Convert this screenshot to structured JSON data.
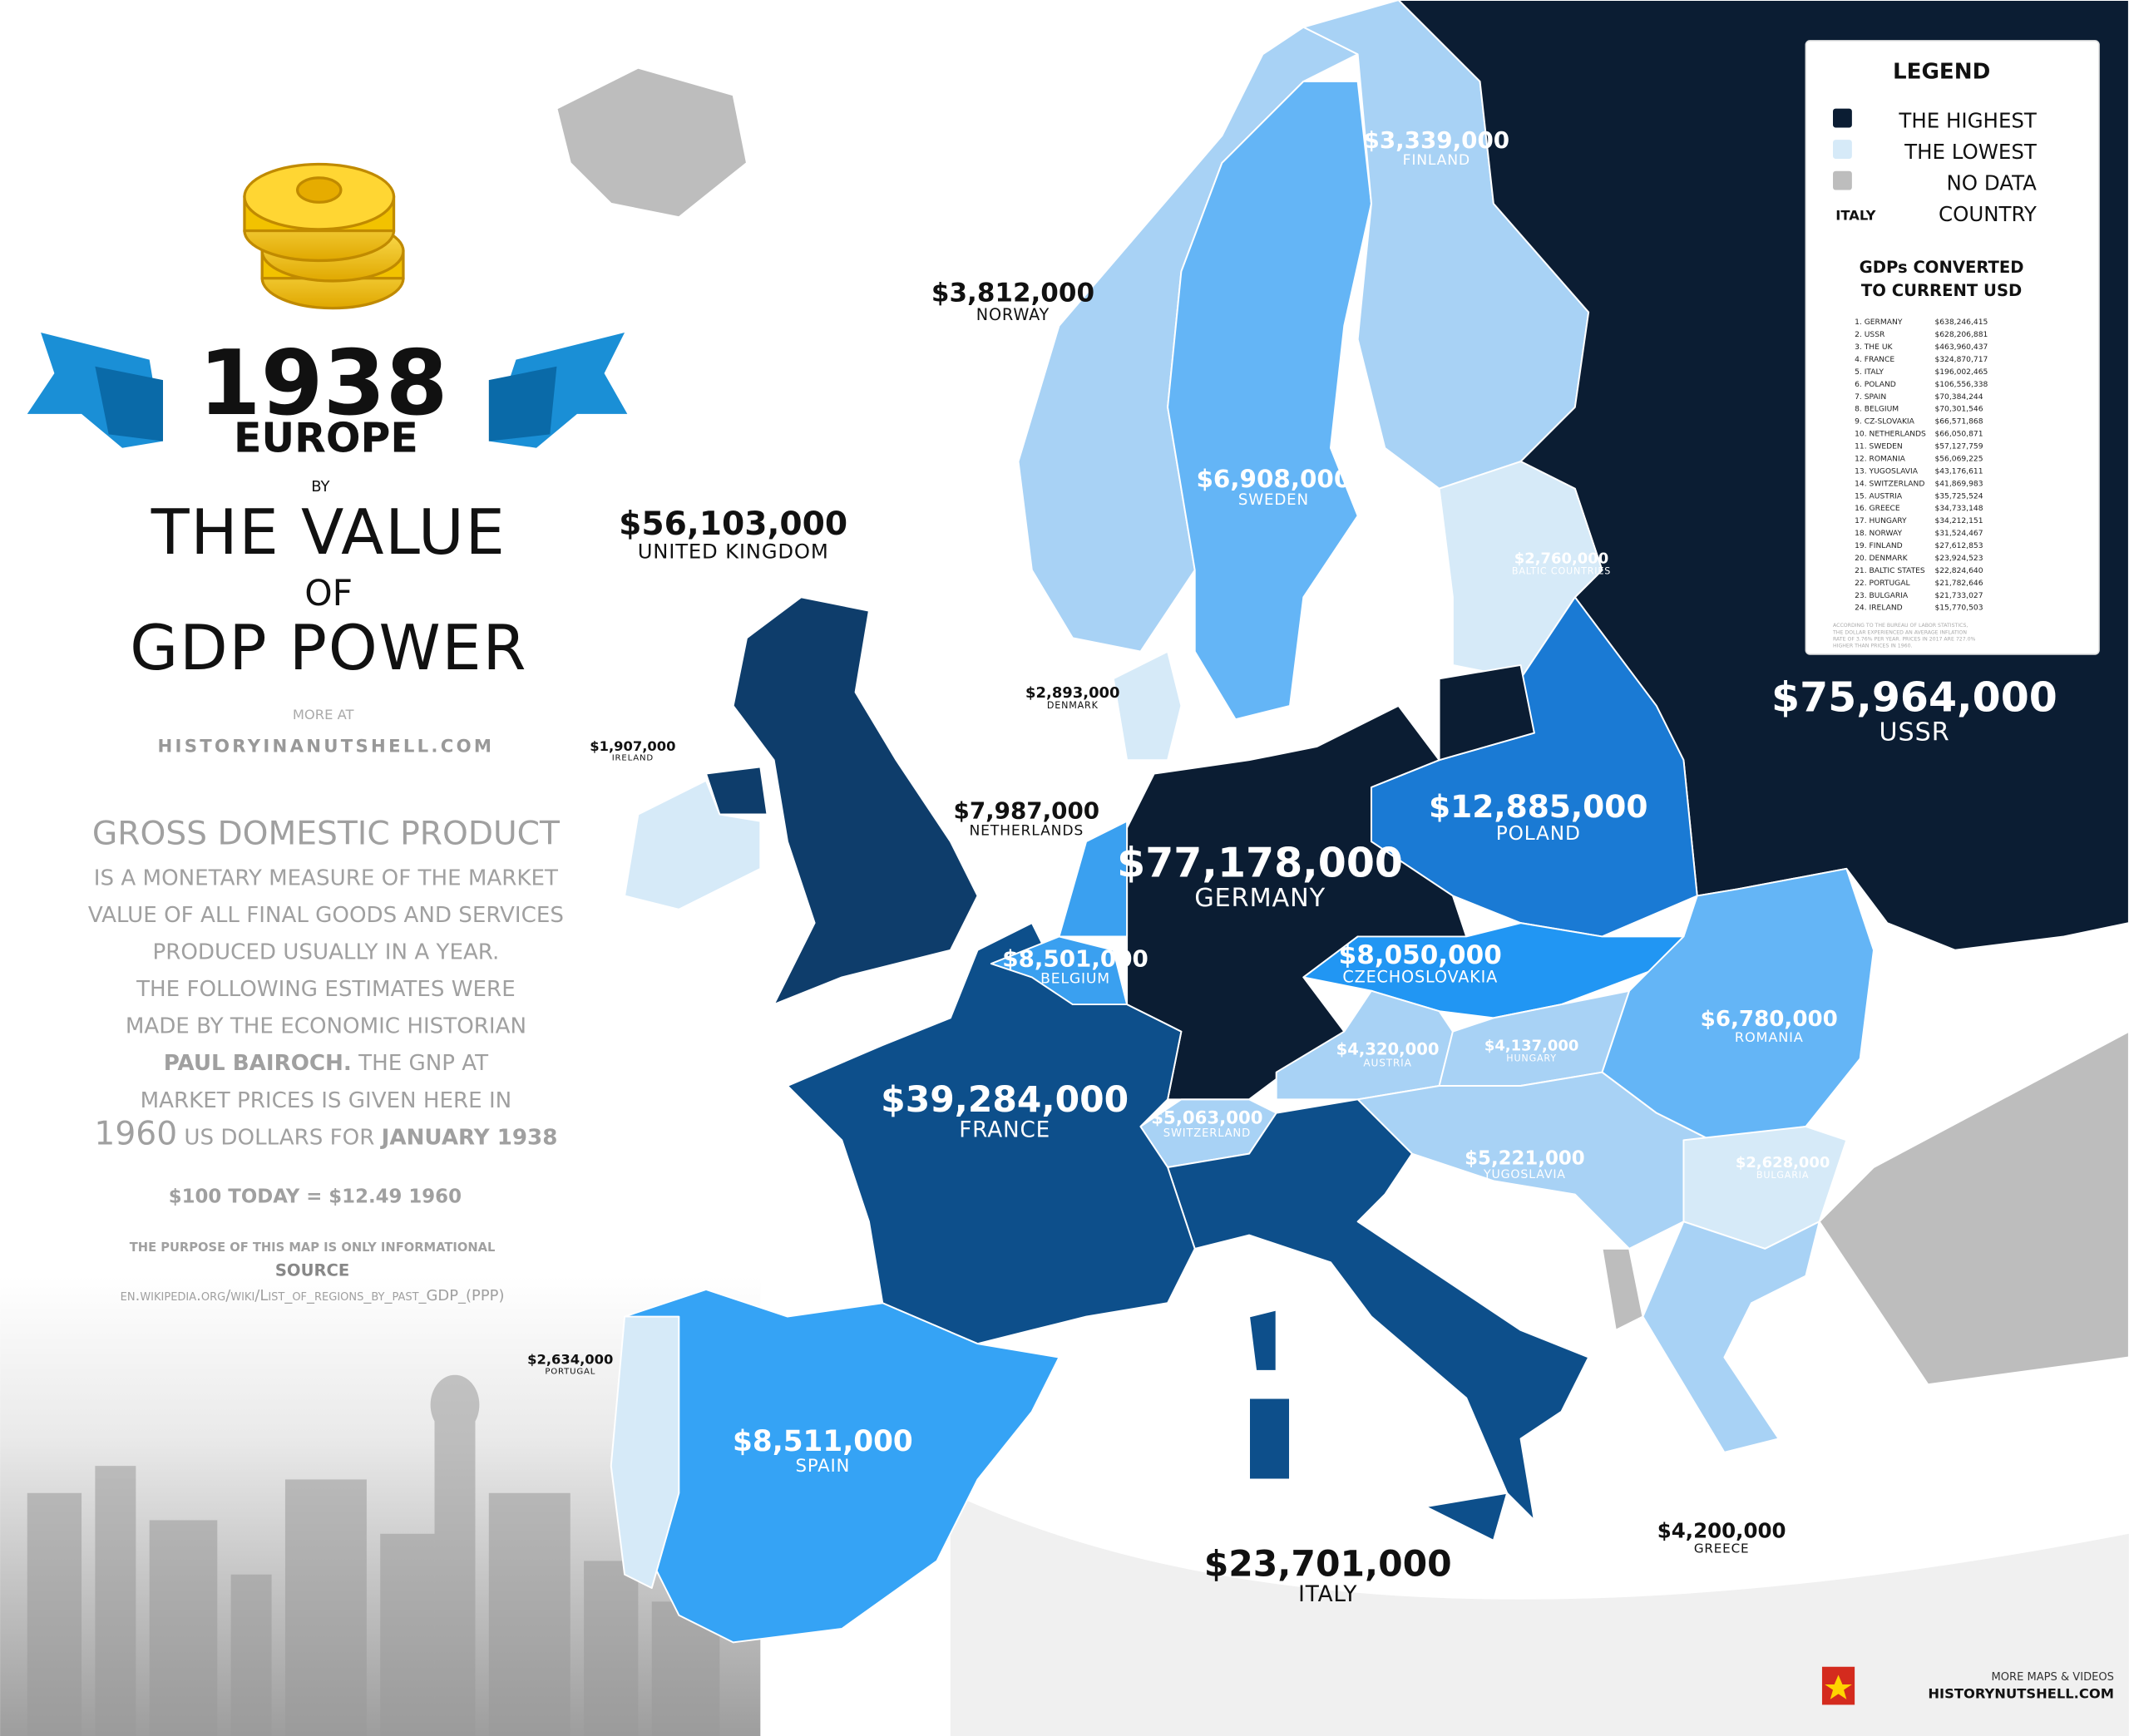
{
  "title": {
    "year": "1938",
    "region": "EUROPE",
    "by": "BY",
    "line1": "THE VALUE",
    "of": "OF",
    "line2": "GDP POWER",
    "more_at": "MORE AT",
    "site": "HISTORYINANUTSHELL.COM"
  },
  "description": {
    "heading": "GROSS DOMESTIC PRODUCT",
    "lines": [
      [
        {
          "text": "IS A MONETARY MEASURE OF THE MARKET",
          "bold": false
        }
      ],
      [
        {
          "text": "VALUE OF ALL FINAL GOODS AND SERVICES",
          "bold": false
        }
      ],
      [
        {
          "text": "PRODUCED USUALLY IN A YEAR.",
          "bold": false
        }
      ],
      [
        {
          "text": "THE FOLLOWING ESTIMATES WERE",
          "bold": false
        }
      ],
      [
        {
          "text": "MADE BY THE ECONOMIC HISTORIAN",
          "bold": false
        }
      ],
      [
        {
          "text": "PAUL BAIROCH.",
          "bold": true
        },
        {
          "text": " THE GNP AT",
          "bold": false
        }
      ],
      [
        {
          "text": "MARKET PRICES IS GIVEN HERE IN",
          "bold": false
        }
      ],
      [
        {
          "text": "1960",
          "bold": false
        },
        {
          "text": " US DOLLARS FOR ",
          "bold": false
        },
        {
          "text": "JANUARY 1938",
          "bold": true
        }
      ]
    ],
    "conversion": "$100 TODAY = $12.49 1960",
    "purpose": "THE PURPOSE OF THIS MAP IS ONLY INFORMATIONAL",
    "source_label": "SOURCE",
    "source": "en.wikipedia.org/wiki/List_of_regions_by_past_GDP_(PPP)"
  },
  "legend": {
    "title": "LEGEND",
    "items": [
      {
        "label": "THE HIGHEST",
        "color": "#0b1d33"
      },
      {
        "label": "THE LOWEST",
        "color": "#d6eaf8"
      },
      {
        "label": "NO DATA",
        "color": "#bdbdbd"
      },
      {
        "marker": "ITALY",
        "label": "COUNTRY"
      }
    ],
    "subtitle": [
      "GDPs CONVERTED",
      "TO CURRENT USD"
    ],
    "ranking": [
      [
        "1. GERMANY",
        "$638,246,415"
      ],
      [
        "2. USSR",
        "$628,206,881"
      ],
      [
        "3. THE UK",
        "$463,960,437"
      ],
      [
        "4. FRANCE",
        "$324,870,717"
      ],
      [
        "5. ITALY",
        "$196,002,465"
      ],
      [
        "6. POLAND",
        "$106,556,338"
      ],
      [
        "7. SPAIN",
        "$70,384,244"
      ],
      [
        "8. BELGIUM",
        "$70,301,546"
      ],
      [
        "9. CZ-SLOVAKIA",
        "$66,571,868"
      ],
      [
        "10. NETHERLANDS",
        "$66,050,871"
      ],
      [
        "11. SWEDEN",
        "$57,127,759"
      ],
      [
        "12. ROMANIA",
        "$56,069,225"
      ],
      [
        "13. YUGOSLAVIA",
        "$43,176,611"
      ],
      [
        "14. SWITZERLAND",
        "$41,869,983"
      ],
      [
        "15. AUSTRIA",
        "$35,725,524"
      ],
      [
        "16. GREECE",
        "$34,733,148"
      ],
      [
        "17. HUNGARY",
        "$34,212,151"
      ],
      [
        "18. NORWAY",
        "$31,524,467"
      ],
      [
        "19. FINLAND",
        "$27,612,853"
      ],
      [
        "20. DENMARK",
        "$23,924,523"
      ],
      [
        "21. BALTIC STATES",
        "$22,824,640"
      ],
      [
        "22. PORTUGAL",
        "$21,782,646"
      ],
      [
        "23. BULGARIA",
        "$21,733,027"
      ],
      [
        "24. IRELAND",
        "$15,770,503"
      ]
    ],
    "note": [
      "ACCORDING TO THE BUREAU OF LABOR STATISTICS,",
      "THE DOLLAR EXPERIENCED AN AVERAGE INFLATION",
      "RATE OF 3.76% PER YEAR. PRICES IN 2017 ARE 727.0%",
      "HIGHER THAN PRICES IN 1960."
    ]
  },
  "countries": [
    {
      "value": "$77,178,000",
      "name": "GERMANY",
      "color": "#0b1d33"
    },
    {
      "value": "$75,964,000",
      "name": "USSR",
      "color": "#0b1d33"
    },
    {
      "value": "$56,103,000",
      "name": "UNITED KINGDOM",
      "color": "#0e3d6b"
    },
    {
      "value": "$39,284,000",
      "name": "FRANCE",
      "color": "#0d4f8b"
    },
    {
      "value": "$23,701,000",
      "name": "ITALY",
      "color": "#0d4f8b"
    },
    {
      "value": "$12,885,000",
      "name": "POLAND",
      "color": "#1a7ad4"
    },
    {
      "value": "$8,511,000",
      "name": "SPAIN",
      "color": "#35a3f5"
    },
    {
      "value": "$8,501,000",
      "name": "BELGIUM",
      "color": "#3aa0f0"
    },
    {
      "value": "$8,050,000",
      "name": "CZECHOSLOVAKIA",
      "color": "#2196f3"
    },
    {
      "value": "$7,987,000",
      "name": "NETHERLANDS",
      "color": "#3aa0f0"
    },
    {
      "value": "$6,908,000",
      "name": "SWEDEN",
      "color": "#64b5f6"
    },
    {
      "value": "$6,780,000",
      "name": "ROMANIA",
      "color": "#64b5f6"
    },
    {
      "value": "$5,221,000",
      "name": "YUGOSLAVIA",
      "color": "#a8d2f5"
    },
    {
      "value": "$5,063,000",
      "name": "SWITZERLAND",
      "color": "#a8d2f5"
    },
    {
      "value": "$4,320,000",
      "name": "AUSTRIA",
      "color": "#a8d2f5"
    },
    {
      "value": "$4,200,000",
      "name": "GREECE",
      "color": "#a8d2f5"
    },
    {
      "value": "$4,137,000",
      "name": "HUNGARY",
      "color": "#a8d2f5"
    },
    {
      "value": "$3,812,000",
      "name": "NORWAY",
      "color": "#a8d2f5"
    },
    {
      "value": "$3,339,000",
      "name": "FINLAND",
      "color": "#a8d2f5"
    },
    {
      "value": "$2,893,000",
      "name": "DENMARK",
      "color": "#d6eaf8"
    },
    {
      "value": "$2,760,000",
      "name": "BALTIC COUNTRIES",
      "color": "#d6eaf8"
    },
    {
      "value": "$2,634,000",
      "name": "PORTUGAL",
      "color": "#d6eaf8"
    },
    {
      "value": "$2,628,000",
      "name": "BULGARIA",
      "color": "#d6eaf8"
    },
    {
      "value": "$1,907,000",
      "name": "IRELAND",
      "color": "#d6eaf8"
    }
  ],
  "footer": {
    "line1": "MORE MAPS & VIDEOS",
    "line2": "HISTORYNUTSHELL.COM"
  }
}
